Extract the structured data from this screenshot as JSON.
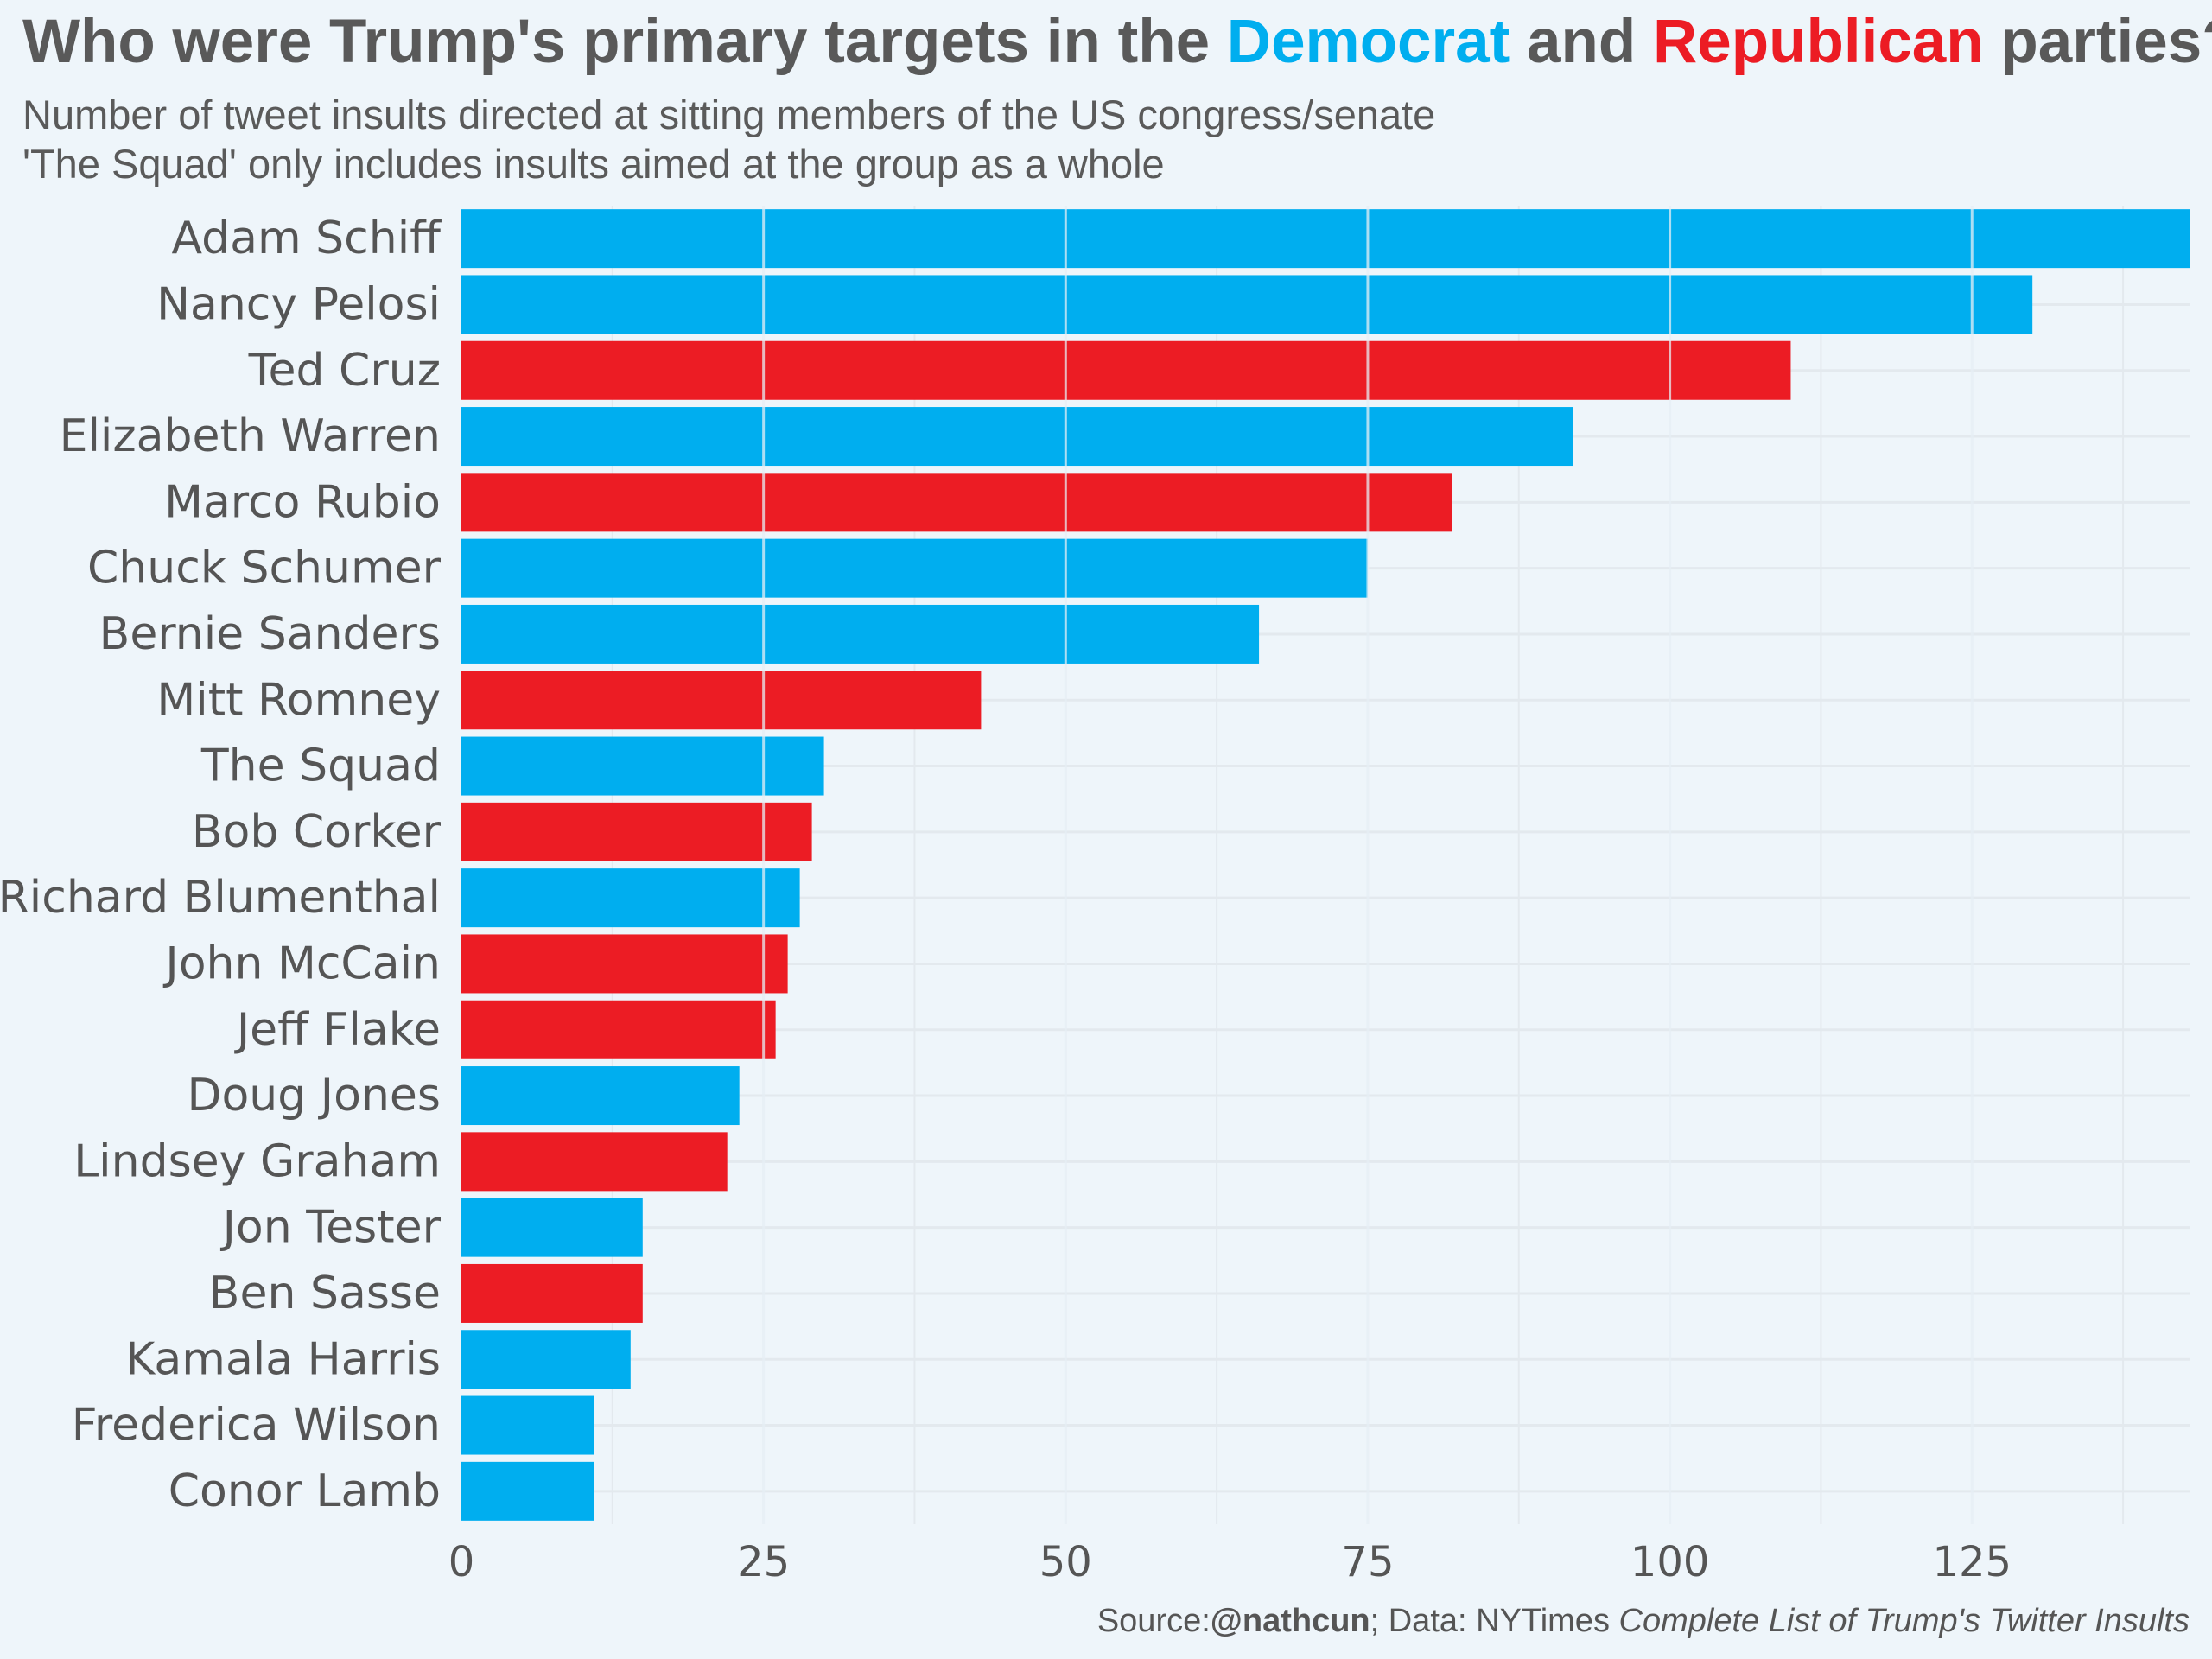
{
  "header": {
    "title_prefix": "Who were Trump's primary targets in the ",
    "title_democrat": "Democrat",
    "title_and": " and ",
    "title_republican": "Republican",
    "title_suffix": " parties?",
    "subtitle_line1": "Number of tweet insults directed at sitting members of the US congress/senate",
    "subtitle_line2": "'The Squad' only includes insults aimed at the group as a whole"
  },
  "colors": {
    "democrat": "#00aeef",
    "republican": "#ec1c24",
    "background": "#eef5fa"
  },
  "source": {
    "prefix": "Source:",
    "handle": "@nathcun",
    "middle": "; Data: NYTimes ",
    "dataset": "Complete List of Trump's Twitter Insults"
  },
  "chart_data": {
    "type": "bar",
    "orientation": "horizontal",
    "title": "Who were Trump's primary targets in the Democrat and Republican parties?",
    "subtitle": "Number of tweet insults directed at sitting members of the US congress/senate",
    "xlim": [
      0,
      143
    ],
    "xticks": [
      0,
      25,
      50,
      75,
      100,
      125
    ],
    "grid": true,
    "categories": [
      "Adam Schiff",
      "Nancy Pelosi",
      "Ted Cruz",
      "Elizabeth Warren",
      "Marco Rubio",
      "Chuck Schumer",
      "Bernie Sanders",
      "Mitt Romney",
      "The Squad",
      "Bob Corker",
      "Richard Blumenthal",
      "John McCain",
      "Jeff Flake",
      "Doug Jones",
      "Lindsey Graham",
      "Jon Tester",
      "Ben Sasse",
      "Kamala Harris",
      "Frederica Wilson",
      "Conor Lamb"
    ],
    "values": [
      143,
      130,
      110,
      92,
      82,
      75,
      66,
      43,
      30,
      29,
      28,
      27,
      26,
      23,
      22,
      15,
      15,
      14,
      11,
      11
    ],
    "parties": [
      "democrat",
      "democrat",
      "republican",
      "democrat",
      "republican",
      "democrat",
      "democrat",
      "republican",
      "democrat",
      "republican",
      "democrat",
      "republican",
      "republican",
      "democrat",
      "republican",
      "democrat",
      "republican",
      "democrat",
      "democrat",
      "democrat"
    ]
  }
}
